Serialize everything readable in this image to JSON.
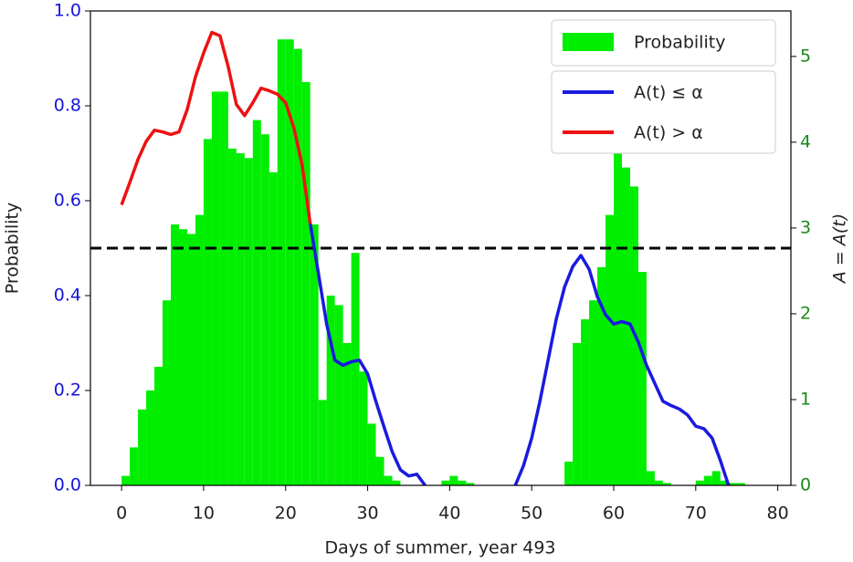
{
  "chart_data": {
    "type": "histogram",
    "xlabel": "Days of summer, year 493",
    "ylabel": "Probability",
    "y2label": "A = A(t)",
    "hist_name": "Probability",
    "hist_color": "#00ee00",
    "bins": [
      0,
      1,
      2,
      3,
      4,
      5,
      6,
      7,
      8,
      9,
      10,
      11,
      12,
      13,
      14,
      15,
      16,
      17,
      18,
      19,
      20,
      21,
      22,
      23,
      24,
      25,
      26,
      27,
      28,
      29,
      30,
      31,
      32,
      33,
      34,
      35,
      36,
      37,
      38,
      39,
      40,
      41,
      42,
      43,
      44,
      45,
      46,
      47,
      48,
      49,
      50,
      51,
      52,
      53,
      54,
      55,
      56,
      57,
      58,
      59,
      60,
      61,
      62,
      63,
      64,
      65,
      66,
      67,
      68,
      69,
      70,
      71,
      72,
      73,
      74,
      75,
      76,
      77
    ],
    "counts": [
      0.02,
      0.08,
      0.16,
      0.2,
      0.25,
      0.39,
      0.55,
      0.54,
      0.53,
      0.57,
      0.73,
      0.83,
      0.83,
      0.71,
      0.7,
      0.69,
      0.77,
      0.74,
      0.66,
      0.94,
      0.94,
      0.92,
      0.85,
      0.55,
      0.18,
      0.4,
      0.38,
      0.3,
      0.49,
      0.24,
      0.13,
      0.06,
      0.02,
      0.01,
      0,
      0,
      0,
      0,
      0,
      0.01,
      0.02,
      0.01,
      0.005,
      0,
      0,
      0,
      0,
      0,
      0,
      0,
      0,
      0,
      0,
      0,
      0.05,
      0.3,
      0.35,
      0.39,
      0.46,
      0.57,
      0.7,
      0.67,
      0.63,
      0.45,
      0.03,
      0.01,
      0.005,
      0,
      0,
      0,
      0.01,
      0.02,
      0.03,
      0.01,
      0.005,
      0.005,
      0
    ],
    "series": [
      {
        "name": "A(t) ≤ α",
        "color": "#1a1ae0",
        "axis": "y2",
        "x": [
          23,
          24,
          25,
          26,
          27,
          28,
          29,
          30,
          31,
          32,
          33,
          34,
          35,
          36,
          37,
          38,
          39,
          40,
          41,
          42,
          43,
          44,
          45,
          46,
          47,
          48,
          49,
          50,
          51,
          52,
          53,
          54,
          55,
          56,
          57,
          58,
          59,
          60,
          61,
          62,
          63,
          64,
          65,
          66,
          67,
          68,
          69,
          70,
          71,
          72,
          73,
          74
        ],
        "values": [
          3.05,
          2.47,
          1.88,
          1.46,
          1.4,
          1.44,
          1.46,
          1.3,
          0.98,
          0.68,
          0.39,
          0.18,
          0.11,
          0.13,
          0,
          null,
          null,
          null,
          null,
          null,
          null,
          null,
          null,
          null,
          null,
          0,
          0.23,
          0.55,
          0.98,
          1.46,
          1.94,
          2.31,
          2.55,
          2.68,
          2.52,
          2.2,
          1.99,
          1.88,
          1.91,
          1.88,
          1.67,
          1.4,
          1.19,
          0.98,
          0.93,
          0.89,
          0.82,
          0.69,
          0.66,
          0.55,
          0.29,
          0
        ]
      },
      {
        "name": "A(t) > α",
        "color": "#ee1111",
        "axis": "y2",
        "x": [
          0,
          1,
          2,
          3,
          4,
          5,
          6,
          7,
          8,
          9,
          10,
          11,
          12,
          13,
          14,
          15,
          16,
          17,
          18,
          19,
          20,
          21,
          22,
          23
        ],
        "values": [
          3.27,
          3.53,
          3.8,
          4.01,
          4.14,
          4.12,
          4.09,
          4.12,
          4.38,
          4.76,
          5.04,
          5.28,
          5.24,
          4.88,
          4.44,
          4.31,
          4.46,
          4.63,
          4.6,
          4.56,
          4.46,
          4.17,
          3.74,
          3.05
        ]
      }
    ],
    "threshold": 0.5,
    "xlim": [
      -3.8,
      81.6
    ],
    "ylim": [
      0,
      1
    ],
    "y2lim": [
      0,
      5.53
    ],
    "xticks": [
      0,
      10,
      20,
      30,
      40,
      50,
      60,
      70,
      80
    ],
    "yticks": [
      {
        "value": 0,
        "label": "0.0"
      },
      0.2,
      0.4,
      0.6,
      0.8,
      {
        "value": 1,
        "label": "1.0"
      }
    ],
    "y2ticks": [
      0,
      1,
      2,
      3,
      4,
      5
    ],
    "ytick_color": "#1515d8",
    "y2tick_color": "#1a8a1a",
    "legend": "upper right"
  }
}
